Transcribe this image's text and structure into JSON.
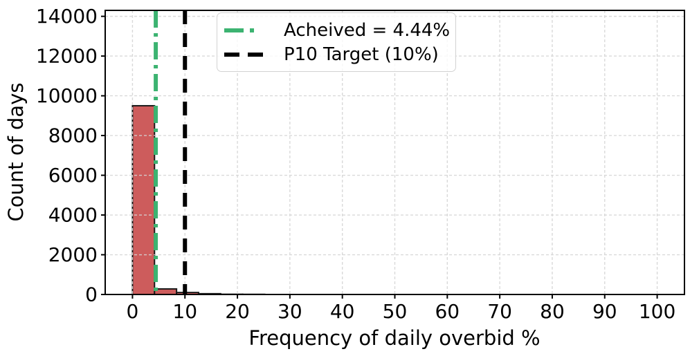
{
  "figure": {
    "xlabel": "Frequency of daily overbid %",
    "ylabel": "Count of days"
  },
  "chart_data": {
    "type": "histogram",
    "title": "",
    "xlabel": "Frequency of daily overbid %",
    "ylabel": "Count of days",
    "bin_edges": [
      0,
      4.2,
      8.4,
      12.6,
      16.8,
      21.0,
      25.2
    ],
    "counts": [
      9500,
      280,
      100,
      40,
      12,
      8
    ],
    "bar_color": "#cd5c5c",
    "bar_edge_color": "#1a1a1a",
    "xlim": [
      -5.2,
      105.2
    ],
    "ylim": [
      0,
      14300
    ],
    "xticks": [
      0,
      10,
      20,
      30,
      40,
      50,
      60,
      70,
      80,
      90,
      100
    ],
    "yticks": [
      0,
      2000,
      4000,
      6000,
      8000,
      10000,
      12000,
      14000
    ],
    "grid": true,
    "grid_style": "dashed",
    "legend_position": "upper-left",
    "vlines": [
      {
        "name": "achieved-line",
        "x": 4.44,
        "color": "#3cb371",
        "style": "dashdot",
        "label": "Acheived = 4.44%"
      },
      {
        "name": "target-line",
        "x": 10,
        "color": "#000000",
        "style": "dashed",
        "label": "P10 Target (10%)"
      }
    ]
  }
}
